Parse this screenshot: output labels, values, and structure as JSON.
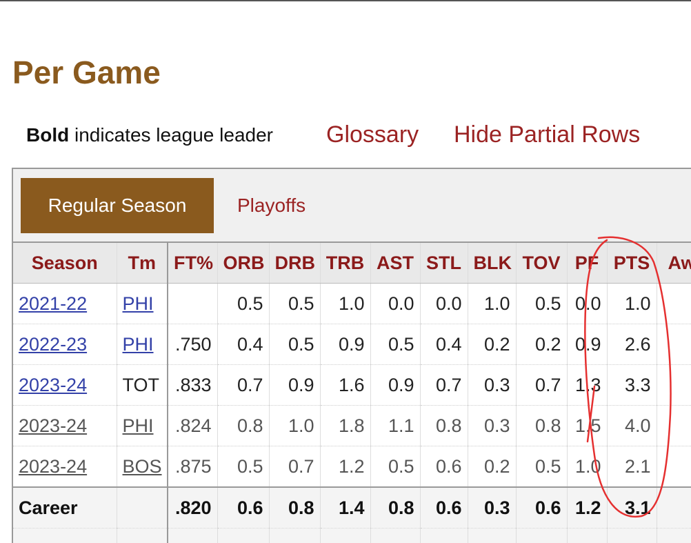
{
  "header": {
    "title": "Per Game"
  },
  "note": {
    "bold": "Bold",
    "text": "indicates league leader"
  },
  "links": [
    "Glossary",
    "Hide Partial Rows"
  ],
  "tabs": [
    "Regular Season",
    "Playoffs"
  ],
  "table": {
    "columns": [
      "Season",
      "Tm",
      "FT%",
      "ORB",
      "DRB",
      "TRB",
      "AST",
      "STL",
      "BLK",
      "TOV",
      "PF",
      "PTS",
      "Awards"
    ],
    "rows": [
      [
        "2021-22",
        "PHI",
        null,
        "0.5",
        "0.5",
        "1.0",
        "0.0",
        "0.0",
        "1.0",
        "0.5",
        "0.0",
        "1.0"
      ],
      [
        "2022-23",
        "PHI",
        ".750",
        "0.4",
        "0.5",
        "0.9",
        "0.5",
        "0.4",
        "0.2",
        "0.2",
        "0.9",
        "2.6"
      ],
      [
        "2023-24",
        "TOT",
        ".833",
        "0.7",
        "0.9",
        "1.6",
        "0.9",
        "0.7",
        "0.3",
        "0.7",
        "1.3",
        "3.3"
      ],
      [
        "2023-24",
        "PHI",
        ".824",
        "0.8",
        "1.0",
        "1.8",
        "1.1",
        "0.8",
        "0.3",
        "0.8",
        "1.5",
        "4.0"
      ],
      [
        "2023-24",
        "BOS",
        ".875",
        "0.5",
        "0.7",
        "1.2",
        "0.5",
        "0.6",
        "0.2",
        "0.5",
        "1.0",
        "2.1"
      ],
      [
        "Career",
        null,
        ".820",
        "0.6",
        "0.8",
        "1.4",
        "0.8",
        "0.6",
        "0.3",
        "0.6",
        "1.2",
        "3.1"
      ]
    ]
  }
}
